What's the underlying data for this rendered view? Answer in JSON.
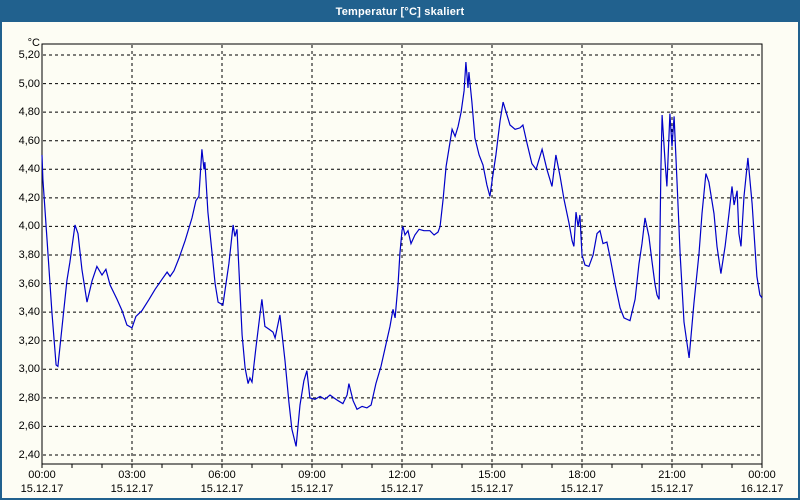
{
  "window": {
    "title": "Temperatur [°C] skaliert"
  },
  "colors": {
    "titlebar": "#21618E",
    "window_border": "#21618E",
    "background": "#FDFDF4",
    "grid": "#000000",
    "line": "#0000C8",
    "axis": "#000000"
  },
  "chart_data": {
    "type": "line",
    "title": "Temperatur [°C] skaliert",
    "grid": "dashed",
    "legend": "none",
    "y_axis": {
      "unit_label": "°C",
      "min": 2.4,
      "max": 5.2,
      "tick_step": 0.2,
      "tick_labels": [
        "5,20",
        "5,00",
        "4,80",
        "4,60",
        "4,40",
        "4,20",
        "4,00",
        "3,80",
        "3,60",
        "3,40",
        "3,20",
        "3,00",
        "2,80",
        "2,60",
        "2,40"
      ],
      "decimal_style": "comma"
    },
    "x_axis": {
      "range_hours": [
        0,
        24
      ],
      "major_tick_interval_hours": 3,
      "minor_tick_interval_hours": 1,
      "ticks": [
        {
          "hours": 0,
          "time": "00:00",
          "date": "15.12.17"
        },
        {
          "hours": 3,
          "time": "03:00",
          "date": "15.12.17"
        },
        {
          "hours": 6,
          "time": "06:00",
          "date": "15.12.17"
        },
        {
          "hours": 9,
          "time": "09:00",
          "date": "15.12.17"
        },
        {
          "hours": 12,
          "time": "12:00",
          "date": "15.12.17"
        },
        {
          "hours": 15,
          "time": "15:00",
          "date": "15.12.17"
        },
        {
          "hours": 18,
          "time": "18:00",
          "date": "15.12.17"
        },
        {
          "hours": 21,
          "time": "21:00",
          "date": "15.12.17"
        },
        {
          "hours": 24,
          "time": "00:00",
          "date": "16.12.17"
        }
      ]
    },
    "series": [
      {
        "name": "Temperatur",
        "color": "#0000C8",
        "points": [
          [
            0.0,
            4.5
          ],
          [
            0.03,
            4.33
          ],
          [
            0.17,
            3.9
          ],
          [
            0.33,
            3.4
          ],
          [
            0.47,
            3.03
          ],
          [
            0.53,
            3.02
          ],
          [
            0.67,
            3.3
          ],
          [
            0.83,
            3.62
          ],
          [
            0.93,
            3.75
          ],
          [
            1.1,
            4.01
          ],
          [
            1.2,
            3.95
          ],
          [
            1.33,
            3.7
          ],
          [
            1.5,
            3.47
          ],
          [
            1.67,
            3.62
          ],
          [
            1.83,
            3.72
          ],
          [
            2.0,
            3.66
          ],
          [
            2.13,
            3.7
          ],
          [
            2.27,
            3.59
          ],
          [
            2.5,
            3.49
          ],
          [
            2.67,
            3.41
          ],
          [
            2.83,
            3.31
          ],
          [
            3.0,
            3.29
          ],
          [
            3.13,
            3.37
          ],
          [
            3.33,
            3.41
          ],
          [
            3.57,
            3.49
          ],
          [
            3.77,
            3.56
          ],
          [
            4.0,
            3.63
          ],
          [
            4.17,
            3.68
          ],
          [
            4.27,
            3.65
          ],
          [
            4.4,
            3.69
          ],
          [
            4.57,
            3.78
          ],
          [
            4.77,
            3.9
          ],
          [
            5.0,
            4.06
          ],
          [
            5.13,
            4.18
          ],
          [
            5.23,
            4.21
          ],
          [
            5.33,
            4.54
          ],
          [
            5.4,
            4.4
          ],
          [
            5.43,
            4.45
          ],
          [
            5.53,
            4.1
          ],
          [
            5.67,
            3.81
          ],
          [
            5.77,
            3.6
          ],
          [
            5.87,
            3.47
          ],
          [
            6.03,
            3.45
          ],
          [
            6.23,
            3.74
          ],
          [
            6.37,
            4.01
          ],
          [
            6.43,
            3.93
          ],
          [
            6.5,
            3.98
          ],
          [
            6.67,
            3.24
          ],
          [
            6.77,
            3.01
          ],
          [
            6.87,
            2.9
          ],
          [
            6.93,
            2.94
          ],
          [
            7.0,
            2.91
          ],
          [
            7.13,
            3.15
          ],
          [
            7.27,
            3.39
          ],
          [
            7.33,
            3.49
          ],
          [
            7.43,
            3.3
          ],
          [
            7.57,
            3.28
          ],
          [
            7.7,
            3.26
          ],
          [
            7.77,
            3.22
          ],
          [
            7.93,
            3.38
          ],
          [
            8.1,
            3.06
          ],
          [
            8.23,
            2.77
          ],
          [
            8.33,
            2.58
          ],
          [
            8.47,
            2.46
          ],
          [
            8.6,
            2.75
          ],
          [
            8.73,
            2.92
          ],
          [
            8.83,
            2.99
          ],
          [
            8.93,
            2.8
          ],
          [
            9.1,
            2.79
          ],
          [
            9.27,
            2.81
          ],
          [
            9.43,
            2.79
          ],
          [
            9.6,
            2.82
          ],
          [
            9.73,
            2.8
          ],
          [
            9.87,
            2.78
          ],
          [
            10.03,
            2.76
          ],
          [
            10.17,
            2.82
          ],
          [
            10.23,
            2.9
          ],
          [
            10.37,
            2.78
          ],
          [
            10.5,
            2.72
          ],
          [
            10.67,
            2.74
          ],
          [
            10.83,
            2.73
          ],
          [
            10.97,
            2.75
          ],
          [
            11.13,
            2.9
          ],
          [
            11.3,
            3.02
          ],
          [
            11.47,
            3.18
          ],
          [
            11.6,
            3.3
          ],
          [
            11.7,
            3.42
          ],
          [
            11.77,
            3.36
          ],
          [
            11.87,
            3.6
          ],
          [
            11.93,
            3.81
          ],
          [
            12.0,
            3.97
          ],
          [
            12.03,
            4.0
          ],
          [
            12.1,
            3.94
          ],
          [
            12.2,
            3.97
          ],
          [
            12.3,
            3.88
          ],
          [
            12.43,
            3.94
          ],
          [
            12.57,
            3.98
          ],
          [
            12.73,
            3.97
          ],
          [
            12.93,
            3.97
          ],
          [
            13.07,
            3.94
          ],
          [
            13.2,
            3.96
          ],
          [
            13.27,
            4.0
          ],
          [
            13.37,
            4.19
          ],
          [
            13.47,
            4.42
          ],
          [
            13.57,
            4.55
          ],
          [
            13.67,
            4.68
          ],
          [
            13.77,
            4.63
          ],
          [
            13.87,
            4.7
          ],
          [
            13.97,
            4.8
          ],
          [
            14.07,
            4.95
          ],
          [
            14.13,
            5.15
          ],
          [
            14.2,
            4.97
          ],
          [
            14.23,
            5.08
          ],
          [
            14.33,
            4.87
          ],
          [
            14.43,
            4.62
          ],
          [
            14.57,
            4.5
          ],
          [
            14.7,
            4.43
          ],
          [
            14.83,
            4.29
          ],
          [
            14.93,
            4.21
          ],
          [
            15.03,
            4.36
          ],
          [
            15.13,
            4.5
          ],
          [
            15.27,
            4.74
          ],
          [
            15.37,
            4.87
          ],
          [
            15.47,
            4.8
          ],
          [
            15.6,
            4.71
          ],
          [
            15.77,
            4.68
          ],
          [
            15.93,
            4.69
          ],
          [
            16.03,
            4.71
          ],
          [
            16.17,
            4.58
          ],
          [
            16.33,
            4.44
          ],
          [
            16.47,
            4.4
          ],
          [
            16.67,
            4.54
          ],
          [
            16.83,
            4.4
          ],
          [
            17.0,
            4.28
          ],
          [
            17.13,
            4.5
          ],
          [
            17.27,
            4.35
          ],
          [
            17.4,
            4.19
          ],
          [
            17.57,
            4.02
          ],
          [
            17.67,
            3.9
          ],
          [
            17.73,
            3.86
          ],
          [
            17.8,
            4.1
          ],
          [
            17.87,
            4.0
          ],
          [
            17.93,
            4.08
          ],
          [
            18.0,
            3.8
          ],
          [
            18.1,
            3.73
          ],
          [
            18.23,
            3.72
          ],
          [
            18.37,
            3.8
          ],
          [
            18.5,
            3.95
          ],
          [
            18.6,
            3.97
          ],
          [
            18.7,
            3.88
          ],
          [
            18.83,
            3.89
          ],
          [
            18.93,
            3.79
          ],
          [
            19.1,
            3.6
          ],
          [
            19.27,
            3.43
          ],
          [
            19.4,
            3.36
          ],
          [
            19.6,
            3.34
          ],
          [
            19.77,
            3.49
          ],
          [
            19.9,
            3.74
          ],
          [
            20.0,
            3.88
          ],
          [
            20.1,
            4.06
          ],
          [
            20.23,
            3.93
          ],
          [
            20.33,
            3.76
          ],
          [
            20.43,
            3.6
          ],
          [
            20.5,
            3.52
          ],
          [
            20.57,
            3.49
          ],
          [
            20.63,
            4.4
          ],
          [
            20.67,
            4.78
          ],
          [
            20.77,
            4.45
          ],
          [
            20.83,
            4.28
          ],
          [
            20.93,
            4.79
          ],
          [
            21.0,
            4.56
          ],
          [
            21.07,
            4.77
          ],
          [
            21.17,
            4.3
          ],
          [
            21.27,
            3.81
          ],
          [
            21.4,
            3.33
          ],
          [
            21.57,
            3.08
          ],
          [
            21.73,
            3.46
          ],
          [
            21.9,
            3.81
          ],
          [
            22.0,
            4.09
          ],
          [
            22.13,
            4.37
          ],
          [
            22.23,
            4.31
          ],
          [
            22.4,
            4.09
          ],
          [
            22.5,
            3.86
          ],
          [
            22.63,
            3.67
          ],
          [
            22.77,
            3.86
          ],
          [
            22.9,
            4.09
          ],
          [
            23.0,
            4.28
          ],
          [
            23.07,
            4.15
          ],
          [
            23.17,
            4.25
          ],
          [
            23.23,
            3.95
          ],
          [
            23.3,
            3.86
          ],
          [
            23.4,
            4.21
          ],
          [
            23.53,
            4.48
          ],
          [
            23.67,
            4.16
          ],
          [
            23.77,
            3.84
          ],
          [
            23.83,
            3.65
          ],
          [
            23.93,
            3.52
          ],
          [
            24.0,
            3.5
          ]
        ]
      }
    ]
  }
}
